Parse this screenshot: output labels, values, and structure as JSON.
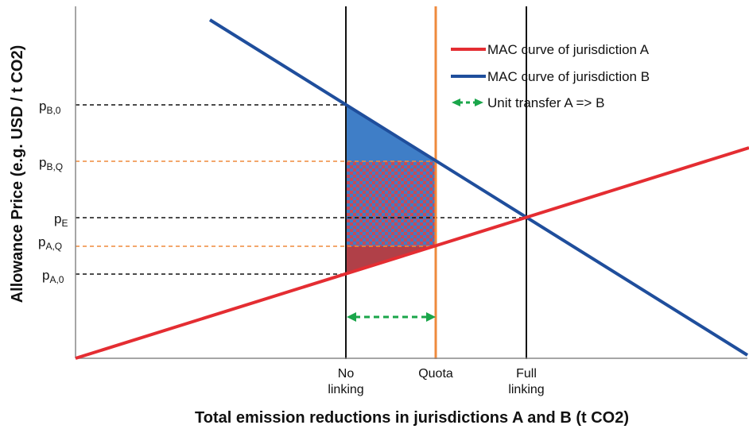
{
  "colors": {
    "curve_a": "#e42d32",
    "curve_b": "#1f4e9c",
    "quota_line": "#ef8a3c",
    "transfer_arrow": "#1aa64a",
    "area_blue": "#3f7ec7",
    "area_red": "#b04048"
  },
  "axes": {
    "y_label": "Allowance Price (e.g. USD / t CO2)",
    "x_label": "Total emission reductions in jurisdictions A and B (t CO2)"
  },
  "price_labels": [
    {
      "base": "p",
      "sub": "B,0"
    },
    {
      "base": "p",
      "sub": "B,Q"
    },
    {
      "base": "p",
      "sub": "E"
    },
    {
      "base": "p",
      "sub": "A,Q"
    },
    {
      "base": "p",
      "sub": "A,0"
    }
  ],
  "x_markers": {
    "no_linking": [
      "No",
      "linking"
    ],
    "quota": [
      "Quota"
    ],
    "full_linking": [
      "Full",
      "linking"
    ]
  },
  "legend": [
    {
      "label": "MAC curve of jurisdiction A",
      "icon": "red-line"
    },
    {
      "label": "MAC curve of jurisdiction B",
      "icon": "blue-line"
    },
    {
      "label": "Unit transfer A => B",
      "icon": "green-double-arrow"
    }
  ]
}
